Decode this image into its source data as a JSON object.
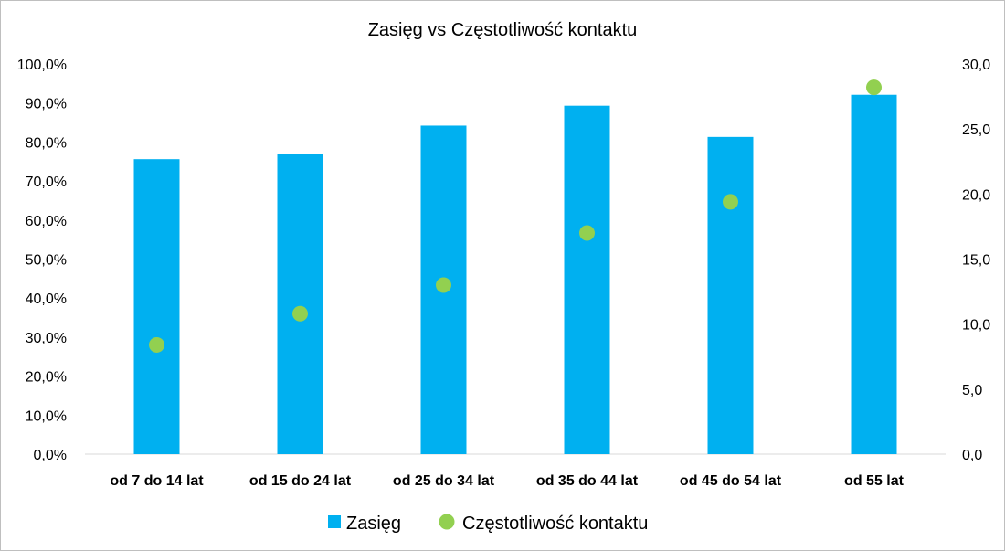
{
  "chart_data": {
    "type": "bar",
    "title": "Zasięg vs Częstotliwość kontaktu",
    "categories": [
      "od 7 do 14 lat",
      "od 15 do 24 lat",
      "od 25 do 34 lat",
      "od 35 do 44 lat",
      "od 45 do 54 lat",
      "od 55 lat"
    ],
    "series": [
      {
        "name": "Zasięg",
        "type": "bar",
        "axis": "left",
        "color": "#00B0F0",
        "values": [
          75.6,
          76.9,
          84.2,
          89.3,
          81.3,
          92.1
        ]
      },
      {
        "name": "Częstotliwość kontaktu",
        "type": "scatter",
        "axis": "right",
        "color": "#92D050",
        "values": [
          8.4,
          10.8,
          13.0,
          17.0,
          19.4,
          28.2
        ]
      }
    ],
    "y_left": {
      "min": 0,
      "max": 100,
      "step": 10,
      "tick_labels": [
        "0,0%",
        "10,0%",
        "20,0%",
        "30,0%",
        "40,0%",
        "50,0%",
        "60,0%",
        "70,0%",
        "80,0%",
        "90,0%",
        "100,0%"
      ]
    },
    "y_right": {
      "min": 0,
      "max": 30,
      "step": 5,
      "tick_labels": [
        "0,0",
        "5,0",
        "10,0",
        "15,0",
        "20,0",
        "25,0",
        "30,0"
      ]
    },
    "grid": false,
    "legend_position": "bottom"
  }
}
